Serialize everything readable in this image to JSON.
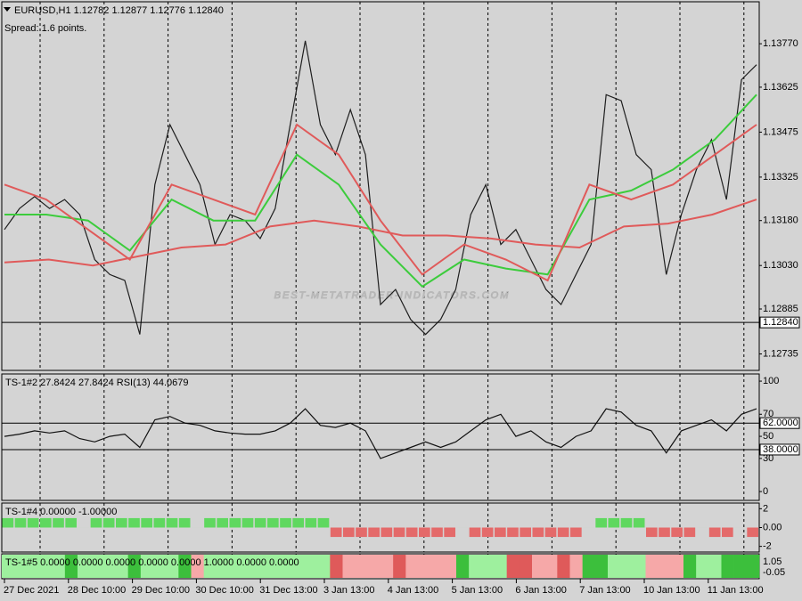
{
  "chart_data": [
    {
      "type": "line",
      "title": "EURUSD,H1  1.12782 1.12877 1.12776 1.12840",
      "subtitle": "Spread: 1.6 points.",
      "annotation": "BEST-METATRADER-INDICATORS.COM",
      "ylim": [
        1.1268,
        1.1391
      ],
      "yticks": [
        1.12735,
        1.12885,
        {
          "value": 1.1303,
          "label": "1.13030"
        },
        {
          "value": 1.1318,
          "label": "1.13180"
        },
        1.13325,
        1.13475,
        1.13625,
        {
          "value": 1.1377,
          "label": "1.13770"
        }
      ],
      "price_line": {
        "value": 1.1284,
        "label": "1.12840"
      },
      "series": [
        {
          "color": "#1e1e1e",
          "values": [
            1.1315,
            1.1322,
            1.1326,
            1.1322,
            1.1325,
            1.132,
            1.1305,
            1.13,
            1.1298,
            1.128,
            1.133,
            1.135,
            1.134,
            1.133,
            1.131,
            1.132,
            1.1318,
            1.1312,
            1.1322,
            1.135,
            1.1378,
            1.135,
            1.134,
            1.1355,
            1.134,
            1.129,
            1.1295,
            1.1285,
            1.128,
            1.1285,
            1.1295,
            1.132,
            1.133,
            1.131,
            1.1315,
            1.1305,
            1.1295,
            1.129,
            1.13,
            1.131,
            1.136,
            1.1358,
            1.134,
            1.1335,
            1.13,
            1.132,
            1.1335,
            1.1345,
            1.1325,
            1.1365,
            1.137
          ]
        },
        {
          "color": "#e05a5a",
          "values": [
            1.1304,
            1.1305,
            1.1303,
            1.1306,
            1.1309,
            1.131,
            1.1316,
            1.1318,
            1.1316,
            1.1313,
            1.1313,
            1.1312,
            1.131,
            1.1309,
            1.1316,
            1.1317,
            1.132,
            1.1325
          ]
        },
        {
          "color": "#3ccc3c",
          "values": [
            1.132,
            1.132,
            1.1318,
            1.1308,
            1.1325,
            1.1318,
            1.1318,
            1.134,
            1.133,
            1.131,
            1.1296,
            1.1305,
            1.1302,
            1.13,
            1.1325,
            1.1328,
            1.1335,
            1.1345,
            1.136
          ]
        },
        {
          "color": "#e05a5a",
          "values": [
            1.133,
            1.1325,
            1.1315,
            1.1305,
            1.133,
            1.1325,
            1.132,
            1.135,
            1.134,
            1.1318,
            1.13,
            1.131,
            1.1305,
            1.1298,
            1.133,
            1.1325,
            1.133,
            1.134,
            1.135
          ]
        }
      ]
    },
    {
      "type": "line",
      "title": "TS-1#2 27.8424 27.8424  RSI(13) 44.0679",
      "ylim": [
        -8,
        106.5
      ],
      "yticks": [
        0,
        30,
        50,
        70,
        100
      ],
      "levels": [
        {
          "value": 62,
          "label": "62.0000"
        },
        {
          "value": 38,
          "label": "38.0000"
        }
      ],
      "series": [
        {
          "color": "#111111",
          "values": [
            50,
            52,
            55,
            53,
            55,
            48,
            45,
            50,
            52,
            40,
            65,
            68,
            62,
            60,
            55,
            53,
            52,
            52,
            55,
            62,
            75,
            60,
            58,
            62,
            55,
            30,
            35,
            40,
            45,
            40,
            45,
            55,
            65,
            70,
            50,
            55,
            45,
            40,
            50,
            55,
            75,
            72,
            60,
            55,
            35,
            55,
            60,
            65,
            55,
            70,
            75
          ]
        }
      ]
    },
    {
      "type": "bar",
      "title": "TS-1#4 0.00000 -1.00000",
      "ylim": [
        -2.6,
        2.6
      ],
      "yticks": [
        2,
        {
          "value": 0,
          "label": "0.00"
        },
        -2
      ],
      "positive_color": "#5fd85f",
      "negative_color": "#e46a6a",
      "values": [
        1,
        1,
        1,
        1,
        1,
        1,
        0,
        1,
        1,
        1,
        1,
        1,
        1,
        1,
        1,
        0,
        1,
        1,
        1,
        1,
        1,
        1,
        1,
        1,
        1,
        1,
        -1,
        -1,
        -1,
        -1,
        -1,
        -1,
        -1,
        -1,
        -1,
        -1,
        0,
        -1,
        -1,
        -1,
        -1,
        -1,
        -1,
        -1,
        -1,
        -1,
        0,
        1,
        1,
        1,
        1,
        -1,
        -1,
        -1,
        -1,
        0,
        -1,
        -1,
        0,
        -1
      ]
    },
    {
      "type": "strip",
      "title": "TS-1#5 0.0000 0.0000 0.0000 0.0000 0.0000 1.0000 0.0000 0.0000",
      "yticks": [
        {
          "value": 1.05,
          "label": "1.05"
        },
        {
          "value": -0.05,
          "label": "-0.05"
        }
      ],
      "palette": {
        "2": "#3cbf3c",
        "1": "#9ef09e",
        "-1": "#f6a8a8",
        "-2": "#df5a5a"
      },
      "values": [
        1,
        1,
        1,
        1,
        1,
        2,
        1,
        1,
        1,
        1,
        2,
        1,
        1,
        1,
        2,
        -1,
        1,
        1,
        1,
        1,
        1,
        1,
        1,
        1,
        1,
        1,
        -2,
        -1,
        -1,
        -1,
        -1,
        -2,
        -1,
        -1,
        -1,
        -1,
        2,
        1,
        1,
        1,
        -2,
        -2,
        -1,
        -1,
        -2,
        -1,
        2,
        2,
        1,
        1,
        1,
        -1,
        -1,
        -1,
        2,
        1,
        1,
        2,
        2,
        2
      ]
    }
  ],
  "time_axis": [
    "27 Dec 2021",
    "28 Dec 10:00",
    "29 Dec 10:00",
    "30 Dec 10:00",
    "31 Dec 13:00",
    "3 Jan 13:00",
    "4 Jan 13:00",
    "5 Jan 13:00",
    "6 Jan 13:00",
    "7 Jan 13:00",
    "10 Jan 13:00",
    "11 Jan 13:00"
  ]
}
